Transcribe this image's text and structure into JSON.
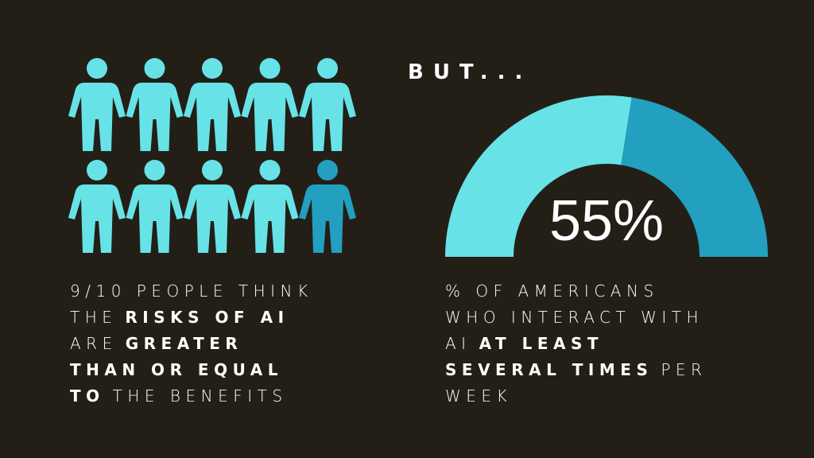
{
  "chart_data": [
    {
      "type": "pictogram",
      "value": 9,
      "total": 10,
      "color": "#67e3e8",
      "rest_color": "#239fc0",
      "lines": [
        [
          {
            "text": "9/10 PEOPLE THINK",
            "bold": false
          }
        ],
        [
          {
            "text": "THE",
            "bold": false
          },
          {
            "text": "RISKS OF AI",
            "bold": true
          }
        ],
        [
          {
            "text": "ARE",
            "bold": false
          },
          {
            "text": "GREATER",
            "bold": true
          }
        ],
        [
          {
            "text": "THAN OR EQUAL",
            "bold": true
          }
        ],
        [
          {
            "text": "TO",
            "bold": true
          },
          {
            "text": "THE BENEFITS",
            "bold": false
          }
        ]
      ]
    },
    {
      "type": "gauge",
      "title": "BUT...",
      "values": [
        55
      ],
      "value_labels": [
        "55%"
      ],
      "ylim": [
        0,
        100
      ],
      "color": "#67e3e8",
      "rest_color": "#239fc0",
      "lines": [
        [
          {
            "text": "% OF AMERICANS",
            "bold": false
          }
        ],
        [
          {
            "text": "WHO INTERACT WITH",
            "bold": false
          }
        ],
        [
          {
            "text": "AI",
            "bold": false
          },
          {
            "text": "AT LEAST",
            "bold": true
          }
        ],
        [
          {
            "text": "SEVERAL TIMES",
            "bold": true
          },
          {
            "text": "PER",
            "bold": false
          }
        ],
        [
          {
            "text": "WEEK",
            "bold": false
          }
        ]
      ]
    }
  ]
}
